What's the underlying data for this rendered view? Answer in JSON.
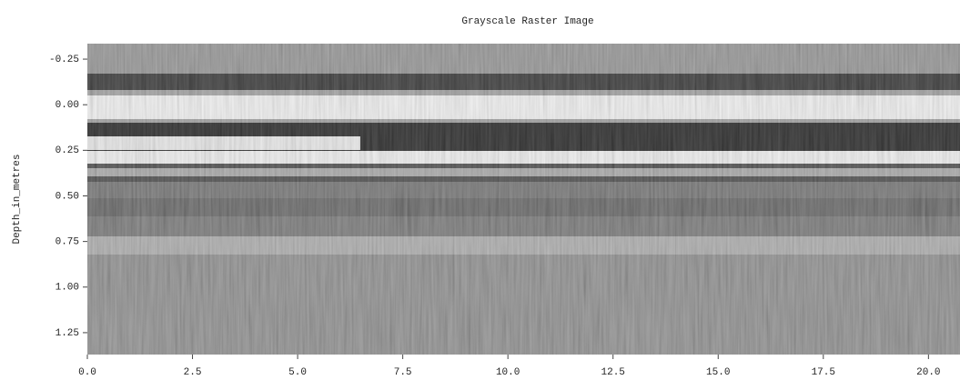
{
  "chart_data": {
    "type": "image",
    "title": "Grayscale Raster Image",
    "ylabel": "Depth_in_metres",
    "xlim": [
      0,
      20.75
    ],
    "ylim": [
      1.37,
      -0.335
    ],
    "xticks": [
      {
        "value": 0,
        "label": "0.0"
      },
      2.5,
      {
        "value": 5,
        "label": "5.0"
      },
      7.5,
      {
        "value": 10,
        "label": "10.0"
      },
      12.5,
      {
        "value": 15,
        "label": "15.0"
      },
      17.5,
      {
        "value": 20,
        "label": "20.0"
      }
    ],
    "yticks": [
      {
        "value": -0.25,
        "label": "-0.25"
      },
      {
        "value": 0,
        "label": "0.00"
      },
      0.25,
      {
        "value": 0.5,
        "label": "0.50"
      },
      0.75,
      {
        "value": 1,
        "label": "1.00"
      },
      1.25
    ]
  }
}
